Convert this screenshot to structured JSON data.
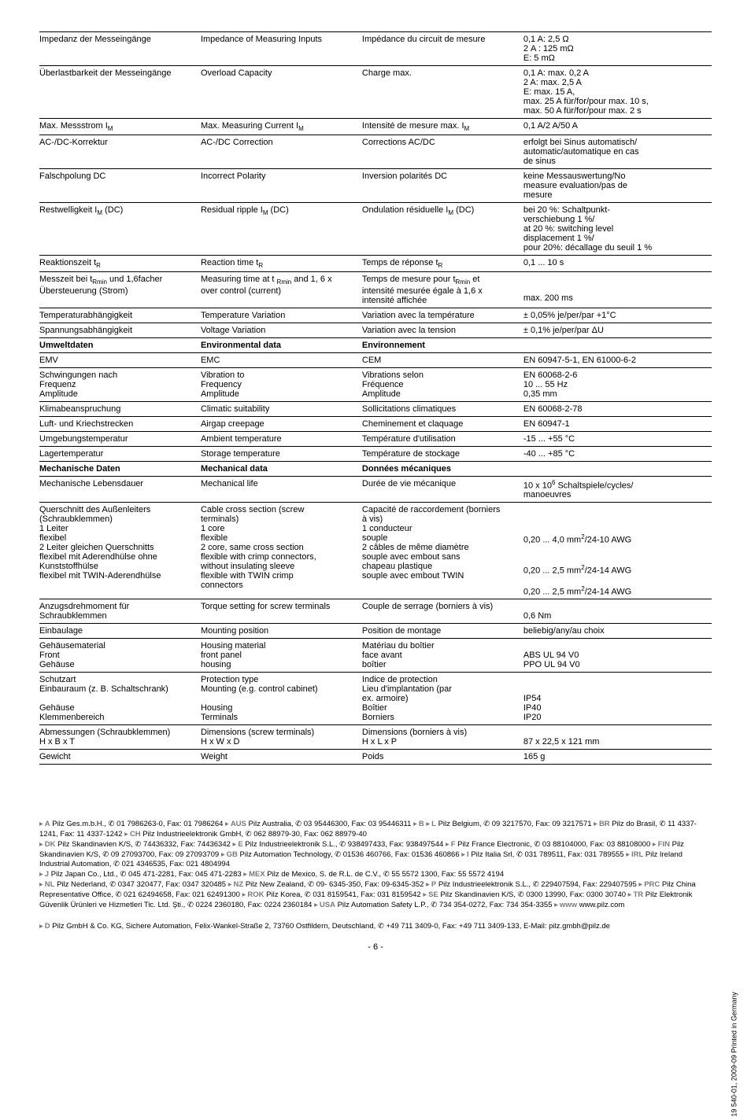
{
  "rows": [
    {
      "de": "Impedanz der Messeingänge",
      "en": "Impedance of Measuring Inputs",
      "fr": "Impédance du circuit de mesure",
      "val": "0,1 A: 2,5 Ω\n2 A :  125 mΩ\nE: 5 mΩ"
    },
    {
      "de": "Überlastbarkeit der Messeingänge",
      "en": "Overload Capacity",
      "fr": "Charge max.",
      "val": "0,1 A: max. 0,2 A\n2 A: max. 2,5 A\nE: max. 15 A,\nmax. 25 A für/for/pour max. 10 s,\nmax. 50 A für/for/pour max. 2 s"
    },
    {
      "de": "Max. Messstrom I<sub>M</sub>",
      "en": "Max. Measuring Current I<sub>M</sub>",
      "fr": "Intensité de mesure max. I<sub>M</sub>",
      "val": "0,1 A/2 A/50 A"
    },
    {
      "de": "AC-/DC-Korrektur",
      "en": "AC-/DC Correction",
      "fr": "Corrections AC/DC",
      "val": "erfolgt bei Sinus automatisch/\nautomatic/automatique en cas\nde sinus"
    },
    {
      "de": "Falschpolung DC",
      "en": "Incorrect Polarity",
      "fr": "Inversion polarités DC",
      "val": "keine Messauswertung/No\nmeasure evaluation/pas de\nmesure"
    },
    {
      "de": "Restwelligkeit I<sub>M</sub> (DC)",
      "en": "Residual ripple I<sub>M</sub> (DC)",
      "fr": "Ondulation résiduelle I<sub>M</sub> (DC)",
      "val": "bei 20 %: Schaltpunkt-\nverschiebung 1 %/\nat 20 %: switching level\ndisplacement 1 %/\npour 20%: décallage du seuil 1 %"
    },
    {
      "de": "Reaktionszeit t<sub>R</sub>",
      "en": "Reaction time t<sub>R</sub>",
      "fr": "Temps de réponse t<sub>R</sub>",
      "val": "0,1 ... 10 s"
    },
    {
      "de": "Messzeit bei t<sub>Rmin</sub> und 1,6facher\nÜbersteuerung (Strom)",
      "en": "Measuring time at t <sub>Rmin</sub> and 1, 6 x\nover control (current)",
      "fr": "Temps de mesure pour t<sub>Rmin</sub> et\nintensité mesurée égale à 1,6 x\nintensité affichée",
      "val": "\n\nmax. 200 ms"
    },
    {
      "de": "Temperaturabhängigkeit",
      "en": "Temperature Variation",
      "fr": "Variation avec la température",
      "val": "± 0,05% je/per/par +1°C"
    },
    {
      "de": "Spannungsabhängigkeit",
      "en": "Voltage Variation",
      "fr": "Variation avec la tension",
      "val": "± 0,1% je/per/par ΔU"
    },
    {
      "section": true,
      "de": "Umweltdaten",
      "en": "Environmental data",
      "fr": "Environnement",
      "val": ""
    },
    {
      "de": "EMV",
      "en": "EMC",
      "fr": "CEM",
      "val": "EN 60947-5-1, EN 61000-6-2"
    },
    {
      "de": "Schwingungen nach\nFrequenz\nAmplitude",
      "en": "Vibration to\nFrequency\nAmplitude",
      "fr": "Vibrations selon\nFréquence\nAmplitude",
      "val": "EN 60068-2-6\n10 ... 55 Hz\n0,35 mm"
    },
    {
      "de": "Klimabeanspruchung",
      "en": "Climatic suitability",
      "fr": "Sollicitations climatiques",
      "val": "EN 60068-2-78"
    },
    {
      "de": "Luft- und Kriechstrecken",
      "en": "Airgap creepage",
      "fr": "Cheminement et claquage",
      "val": "EN 60947-1"
    },
    {
      "de": "Umgebungstemperatur",
      "en": "Ambient temperature",
      "fr": "Température d'utilisation",
      "val": "-15 ... +55 °C"
    },
    {
      "de": "Lagertemperatur",
      "en": "Storage temperature",
      "fr": "Température de stockage",
      "val": "-40 ... +85 °C"
    },
    {
      "section": true,
      "de": "Mechanische Daten",
      "en": "Mechanical data",
      "fr": "Données mécaniques",
      "val": ""
    },
    {
      "de": "Mechanische Lebensdauer",
      "en": "Mechanical life",
      "fr": "Durée de vie mécanique",
      "val": "10 x 10<sup>6</sup> Schaltspiele/cycles/\nmanoeuvres"
    },
    {
      "de": "Querschnitt des Außenleiters\n(Schraubklemmen)\n1 Leiter\nflexibel\n2 Leiter gleichen Querschnitts\nflexibel mit Aderendhülse ohne\nKunststoffhülse\nflexibel mit TWIN-Aderendhülse",
      "en": "Cable cross section (screw\nterminals)\n1 core\nflexible\n2 core, same cross section\nflexible with crimp connectors,\nwithout insulating sleeve\nflexible with TWIN crimp\nconnectors",
      "fr": "Capacité de raccordement  (borniers\nà vis)\n1 conducteur\nsouple\n2 câbles de même diamètre\nsouple avec embout sans\nchapeau plastique\nsouple avec embout TWIN",
      "val": "\n\n\n0,20 ... 4,0 mm<sup>2</sup>/24-10 AWG\n\n\n0,20 ... 2,5 mm<sup>2</sup>/24-14 AWG\n\n0,20 ... 2,5 mm<sup>2</sup>/24-14 AWG"
    },
    {
      "de": "Anzugsdrehmoment für\nSchraubklemmen",
      "en": "Torque setting for screw terminals",
      "fr": "Couple de serrage (borniers à vis)",
      "val": "\n0,6 Nm"
    },
    {
      "de": "Einbaulage",
      "en": "Mounting position",
      "fr": "Position de montage",
      "val": "beliebig/any/au choix"
    },
    {
      "de": "Gehäusematerial\nFront\nGehäuse",
      "en": "Housing material\nfront panel\nhousing",
      "fr": "Matériau du boîtier\nface avant\nboîtier",
      "val": "\nABS UL 94 V0\nPPO UL 94 V0"
    },
    {
      "de": "Schutzart\nEinbauraum (z. B. Schaltschrank)\n\nGehäuse\nKlemmenbereich",
      "en": "Protection type\nMounting (e.g. control cabinet)\n\nHousing\nTerminals",
      "fr": "Indice de protection\nLieu d'implantation (par\nex. armoire)\nBoîtier\nBorniers",
      "val": "\n\nIP54\nIP40\nIP20"
    },
    {
      "de": "Abmessungen (Schraubklemmen)\nH x B x T",
      "en": "Dimensions (screw terminals)\nH x W x D",
      "fr": "Dimensions (borniers à vis)\nH x L x P",
      "val": "\n87 x 22,5 x 121 mm"
    },
    {
      "de": "Gewicht",
      "en": "Weight",
      "fr": "Poids",
      "val": "165 g"
    }
  ],
  "footer_lines": [
    "▸<A> Pilz Ges.m.b.H., ✆ 01 7986263-0, Fax: 01 7986264 ▸<AUS> Pilz Australia, ✆ 03 95446300, Fax: 03 95446311 ▸<B> ▸<L> Pilz Belgium, ✆ 09 3217570, Fax: 09 3217571 ▸<BR> Pilz do Brasil, ✆ 11 4337-1241, Fax: 11 4337-1242  ▸<CH> Pilz Industrieelektronik GmbH, ✆ 062 88979-30, Fax: 062 88979-40",
    "▸<DK> Pilz Skandinavien K/S, ✆ 74436332, Fax: 74436342 ▸<E> Pilz Industrieelektronik S.L., ✆ 938497433, Fax: 938497544 ▸<F> Pilz France Electronic, ✆ 03 88104000, Fax: 03 88108000 ▸<FIN> Pilz Skandinavien K/S, ✆ 09 27093700, Fax: 09 27093709 ▸<GB> Pilz Automation Technology, ✆ 01536 460766, Fax: 01536 460866 ▸<I> Pilz Italia Srl, ✆ 031 789511, Fax: 031 789555 ▸<IRL> Pilz Ireland Industrial Automation, ✆ 021 4346535, Fax: 021 4804994",
    "▸<J> Pilz Japan Co., Ltd., ✆ 045 471-2281, Fax: 045 471-2283 ▸<MEX> Pilz de Mexico, S. de R.L. de C.V., ✆ 55 5572 1300, Fax: 55 5572 4194",
    "▸<NL> Pilz Nederland, ✆ 0347 320477, Fax: 0347 320485 ▸<NZ> Pilz New Zealand, ✆ 09- 6345-350, Fax: 09-6345-352 ▸<P> Pilz Industrieelektronik S.L., ✆ 229407594, Fax: 229407595 ▸<PRC> Pilz China Representative Office, ✆ 021 62494658, Fax: 021 62491300 ▸<ROK> Pilz Korea, ✆ 031 8159541, Fax: 031 8159542 ▸<SE> Pilz Skandinavien K/S, ✆ 0300 13990, Fax: 0300 30740 ▸<TR> Pilz Elektronik Güvenlik Ürünleri ve Hizmetleri Tic. Ltd. Şti., ✆ 0224 2360180, Fax: 0224 2360184 ▸<USA> Pilz Automation Safety L.P., ✆ 734 354-0272, Fax: 734 354-3355 ▸<www> www.pilz.com"
  ],
  "footer_main": "▸<D> Pilz GmbH & Co. KG, Sichere Automation, Felix-Wankel-Straße 2, 73760 Ostfildern, Deutschland, ✆ +49 711 3409-0, Fax: +49 711 3409-133, E-Mail: pilz.gmbh@pilz.de",
  "page_number": "- 6 -",
  "side_text": "19 540-01, 2009-09 Printed in Germany"
}
